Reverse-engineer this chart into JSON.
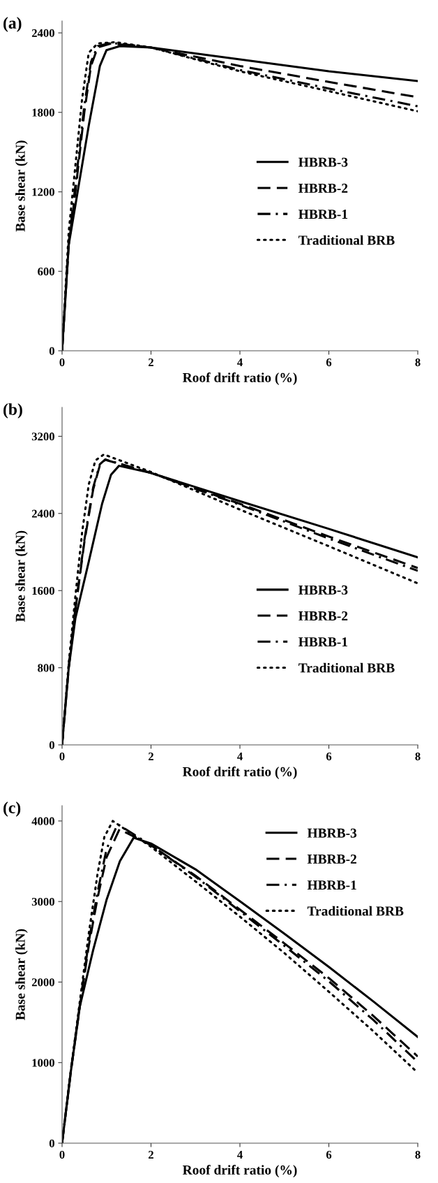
{
  "chart_data": [
    {
      "type": "line",
      "title": "(a)",
      "xlabel": "Roof drift ratio (%)",
      "ylabel": "Base shear (kN)",
      "xlim": [
        0,
        8
      ],
      "xticks": [
        0,
        2,
        4,
        6,
        8
      ],
      "ylim": [
        0,
        2490
      ],
      "yticks": [
        0,
        600,
        1200,
        1800,
        2400
      ],
      "legend": "center right",
      "grid": false,
      "marker": "none",
      "series": [
        {
          "name": "HBRB-3",
          "color": "#000000",
          "line_style": "solid",
          "x": [
            0,
            0.15,
            0.3,
            0.6,
            0.85,
            1.0,
            1.3,
            2,
            4,
            6,
            8
          ],
          "values": [
            0,
            800,
            1100,
            1700,
            2150,
            2270,
            2300,
            2290,
            2200,
            2110,
            2036
          ]
        },
        {
          "name": "HBRB-2",
          "color": "#000000",
          "line_style": "dashed",
          "x": [
            0,
            0.15,
            0.3,
            0.5,
            0.65,
            0.8,
            1.1,
            2,
            4,
            6,
            8
          ],
          "values": [
            0,
            800,
            1200,
            1800,
            2150,
            2290,
            2320,
            2290,
            2150,
            2030,
            1914
          ]
        },
        {
          "name": "HBRB-1",
          "color": "#000000",
          "line_style": "dashdot",
          "x": [
            0,
            0.15,
            0.3,
            0.5,
            0.65,
            0.8,
            1.1,
            2,
            4,
            6,
            8
          ],
          "values": [
            0,
            820,
            1250,
            1850,
            2180,
            2300,
            2325,
            2290,
            2120,
            1980,
            1846
          ]
        },
        {
          "name": "Traditional BRB",
          "color": "#000000",
          "line_style": "dotted",
          "x": [
            0,
            0.15,
            0.3,
            0.45,
            0.6,
            0.8,
            1.2,
            2,
            4,
            6,
            8
          ],
          "values": [
            0,
            900,
            1400,
            1900,
            2250,
            2320,
            2330,
            2290,
            2110,
            1960,
            1808
          ]
        }
      ]
    },
    {
      "type": "line",
      "title": "(b)",
      "xlabel": "Roof drift ratio (%)",
      "ylabel": "Base shear (kN)",
      "xlim": [
        0,
        8
      ],
      "xticks": [
        0,
        2,
        4,
        6,
        8
      ],
      "ylim": [
        0,
        3500
      ],
      "yticks": [
        0,
        800,
        1600,
        2400,
        3200
      ],
      "legend": "lower right",
      "grid": false,
      "marker": "none",
      "series": [
        {
          "name": "HBRB-3",
          "color": "#000000",
          "line_style": "solid",
          "x": [
            0,
            0.15,
            0.3,
            0.6,
            0.9,
            1.1,
            1.28,
            2,
            4,
            6,
            8
          ],
          "values": [
            0,
            800,
            1314,
            1900,
            2500,
            2800,
            2894,
            2820,
            2527,
            2240,
            1944
          ]
        },
        {
          "name": "HBRB-2",
          "color": "#000000",
          "line_style": "dashed",
          "x": [
            0,
            0.15,
            0.3,
            0.5,
            0.7,
            0.85,
            0.97,
            2,
            4,
            6,
            8
          ],
          "values": [
            0,
            800,
            1400,
            2100,
            2650,
            2900,
            2957,
            2820,
            2500,
            2160,
            1834
          ]
        },
        {
          "name": "HBRB-1",
          "color": "#000000",
          "line_style": "dashdot",
          "x": [
            0,
            0.15,
            0.3,
            0.5,
            0.7,
            0.85,
            0.97,
            2,
            4,
            6,
            8
          ],
          "values": [
            0,
            810,
            1420,
            2120,
            2670,
            2910,
            2960,
            2820,
            2490,
            2140,
            1805
          ]
        },
        {
          "name": "Traditional BRB",
          "color": "#000000",
          "line_style": "dotted",
          "x": [
            0,
            0.15,
            0.3,
            0.45,
            0.6,
            0.75,
            0.94,
            2,
            4,
            6,
            8
          ],
          "values": [
            0,
            850,
            1545,
            2200,
            2700,
            2950,
            3012,
            2830,
            2440,
            2060,
            1675
          ]
        }
      ]
    },
    {
      "type": "line",
      "title": "(c)",
      "xlabel": "Roof drift ratio (%)",
      "ylabel": "Base shear (kN)",
      "xlim": [
        0,
        8
      ],
      "xticks": [
        0,
        2,
        4,
        6,
        8
      ],
      "ylim": [
        0,
        4190
      ],
      "yticks": [
        0,
        1000,
        2000,
        3000,
        4000
      ],
      "legend": "upper right",
      "grid": false,
      "marker": "none",
      "series": [
        {
          "name": "HBRB-3",
          "color": "#000000",
          "line_style": "solid",
          "x": [
            0,
            0.2,
            0.4,
            0.7,
            1.0,
            1.3,
            1.61,
            2,
            3,
            4,
            5,
            6,
            7,
            8
          ],
          "values": [
            0,
            900,
            1700,
            2400,
            3020,
            3500,
            3792,
            3720,
            3400,
            3003,
            2600,
            2188,
            1760,
            1319
          ]
        },
        {
          "name": "HBRB-2",
          "color": "#000000",
          "line_style": "dashed",
          "x": [
            0,
            0.2,
            0.4,
            0.6,
            0.8,
            1.0,
            1.29,
            2,
            3,
            4,
            5,
            6,
            7,
            8
          ],
          "values": [
            0,
            900,
            1700,
            2450,
            3050,
            3550,
            3896,
            3700,
            3320,
            2899,
            2480,
            2050,
            1580,
            1076
          ]
        },
        {
          "name": "HBRB-1",
          "color": "#000000",
          "line_style": "dashdot",
          "x": [
            0,
            0.2,
            0.4,
            0.6,
            0.8,
            1.0,
            1.25,
            2,
            3,
            4,
            5,
            6,
            7,
            8
          ],
          "values": [
            0,
            910,
            1720,
            2500,
            3120,
            3650,
            3960,
            3700,
            3310,
            2880,
            2450,
            2010,
            1530,
            1007
          ]
        },
        {
          "name": "Traditional BRB",
          "color": "#000000",
          "line_style": "dotted",
          "x": [
            0,
            0.2,
            0.4,
            0.6,
            0.8,
            0.95,
            1.14,
            2,
            3,
            4,
            5,
            6,
            7,
            8
          ],
          "values": [
            0,
            920,
            1760,
            2600,
            3350,
            3800,
            4000,
            3680,
            3250,
            2812,
            2360,
            1880,
            1390,
            875
          ]
        }
      ]
    }
  ]
}
